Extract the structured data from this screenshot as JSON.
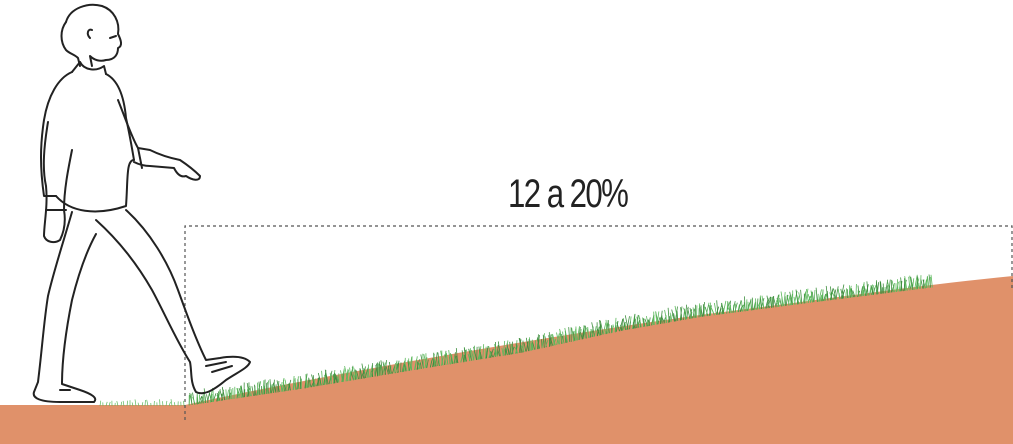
{
  "diagram": {
    "slope_label": "12 a 20%",
    "colors": {
      "ground": "#e0916a",
      "grass": "#5cb85c",
      "grass_dark": "#3f8f3f",
      "line": "#222222",
      "dashed": "#555555"
    },
    "figure": {
      "icon": "walking-person-icon"
    }
  }
}
